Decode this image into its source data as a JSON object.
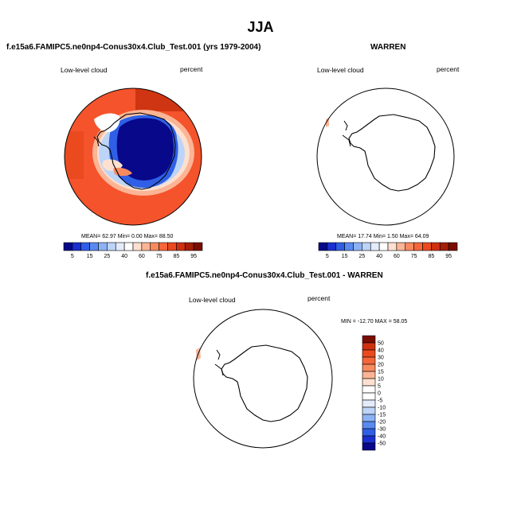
{
  "page": {
    "title": "JJA"
  },
  "chart_data": [
    {
      "type": "heatmap",
      "projection": "south-polar-stereographic",
      "title": "f.e15a6.FAMIPC5.ne0np4-Conus30x4.Club_Test.001 (yrs 1979-2004)",
      "variable": "Low-level cloud",
      "units": "percent",
      "stats": "MEAN=  62.97  Min=   0.00  Max=  88.50",
      "mean": 62.97,
      "min": 0.0,
      "max": 88.5,
      "colorbar": {
        "orientation": "horizontal",
        "levels": [
          5,
          10,
          15,
          20,
          25,
          30,
          40,
          50,
          60,
          70,
          75,
          80,
          85,
          90,
          95
        ],
        "tick_labels": [
          "5",
          "15",
          "25",
          "40",
          "60",
          "75",
          "85",
          "95"
        ]
      }
    },
    {
      "type": "heatmap",
      "projection": "south-polar-stereographic",
      "title": "WARREN",
      "variable": "Low-level cloud",
      "units": "percent",
      "stats": "MEAN=  17.74  Min=   1.50  Max=  64.09",
      "mean": 17.74,
      "min": 1.5,
      "max": 64.09,
      "colorbar": {
        "orientation": "horizontal",
        "levels": [
          5,
          10,
          15,
          20,
          25,
          30,
          40,
          50,
          60,
          70,
          75,
          80,
          85,
          90,
          95
        ],
        "tick_labels": [
          "5",
          "15",
          "25",
          "40",
          "60",
          "75",
          "85",
          "95"
        ]
      }
    },
    {
      "type": "heatmap",
      "projection": "south-polar-stereographic",
      "title": "f.e15a6.FAMIPC5.ne0np4-Conus30x4.Club_Test.001 - WARREN",
      "variable": "Low-level cloud",
      "units": "percent",
      "stats": "MIN = -12.70  MAX =  58.05",
      "min": -12.7,
      "max": 58.05,
      "colorbar": {
        "orientation": "vertical",
        "levels": [
          -50,
          -40,
          -30,
          -20,
          -15,
          -10,
          -5,
          0,
          5,
          10,
          15,
          20,
          30,
          40,
          50
        ],
        "tick_labels": [
          "50",
          "40",
          "30",
          "20",
          "15",
          "10",
          "5",
          "0",
          "-5",
          "-10",
          "-15",
          "-20",
          "-30",
          "-40",
          "-50"
        ]
      }
    }
  ],
  "colors": {
    "seq": [
      "#08088a",
      "#1a2fcf",
      "#2f5fe6",
      "#5a8af0",
      "#8cb2f5",
      "#bcd4f8",
      "#e4ecfb",
      "#ffffff",
      "#fde0cf",
      "#fbb495",
      "#f88a60",
      "#f5663a",
      "#ea4a1e",
      "#cf3010",
      "#a41e08",
      "#7a0d02"
    ],
    "diff": [
      "#08088a",
      "#1a2fcf",
      "#2f5fe6",
      "#5a8af0",
      "#8cb2f5",
      "#bcd4f8",
      "#e4ecfb",
      "#ffffff",
      "#ffffff",
      "#fde0cf",
      "#fbb495",
      "#f88a60",
      "#f5663a",
      "#ea4a1e",
      "#cf3010",
      "#7a0d02"
    ],
    "ocean_field": "#f4532b",
    "ice_low": "#08088a"
  }
}
